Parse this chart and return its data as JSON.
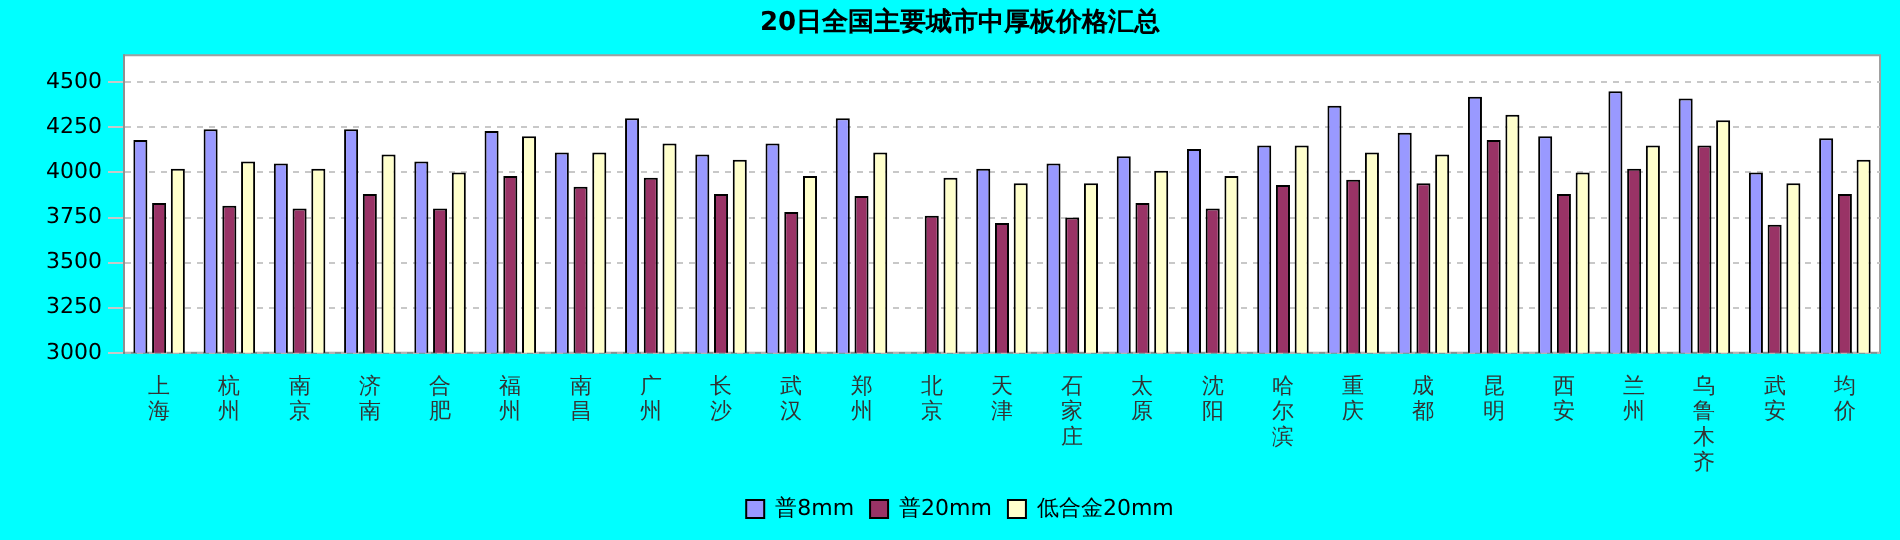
{
  "chart_data": {
    "type": "bar",
    "title": "20日全国主要城市中厚板价格汇总",
    "categories": [
      "上海",
      "杭州",
      "南京",
      "济南",
      "合肥",
      "福州",
      "南昌",
      "广州",
      "长沙",
      "武汉",
      "郑州",
      "北京",
      "天津",
      "石家庄",
      "太原",
      "沈阳",
      "哈尔滨",
      "重庆",
      "成都",
      "昆明",
      "西安",
      "兰州",
      "乌鲁木齐",
      "武安",
      "均价"
    ],
    "series": [
      {
        "name": "普8mm",
        "color": "#9999ff",
        "values": [
          4180,
          4240,
          4050,
          4240,
          4060,
          4230,
          4110,
          4300,
          4100,
          4160,
          4300,
          null,
          4020,
          4050,
          4090,
          4130,
          4150,
          4370,
          4220,
          4420,
          4200,
          4450,
          4410,
          4000,
          4190
        ]
      },
      {
        "name": "普20mm",
        "color": "#993366",
        "values": [
          3830,
          3815,
          3800,
          3880,
          3800,
          3980,
          3920,
          3970,
          3880,
          3780,
          3870,
          3760,
          3720,
          3750,
          3830,
          3800,
          3930,
          3960,
          3940,
          4180,
          3880,
          4020,
          4150,
          3710,
          3880
        ]
      },
      {
        "name": "低合金20mm",
        "color": "#ffffcc",
        "values": [
          4020,
          4060,
          4020,
          4100,
          4000,
          4200,
          4110,
          4160,
          4070,
          3980,
          4110,
          3970,
          3940,
          3940,
          4010,
          3980,
          4150,
          4110,
          4100,
          4320,
          4000,
          4150,
          4290,
          3940,
          4070
        ]
      }
    ],
    "ylim": [
      3000,
      4650
    ],
    "yticks": [
      3000,
      3250,
      3500,
      3750,
      4000,
      4250,
      4500
    ],
    "grid": "y",
    "legend": "bottom"
  }
}
